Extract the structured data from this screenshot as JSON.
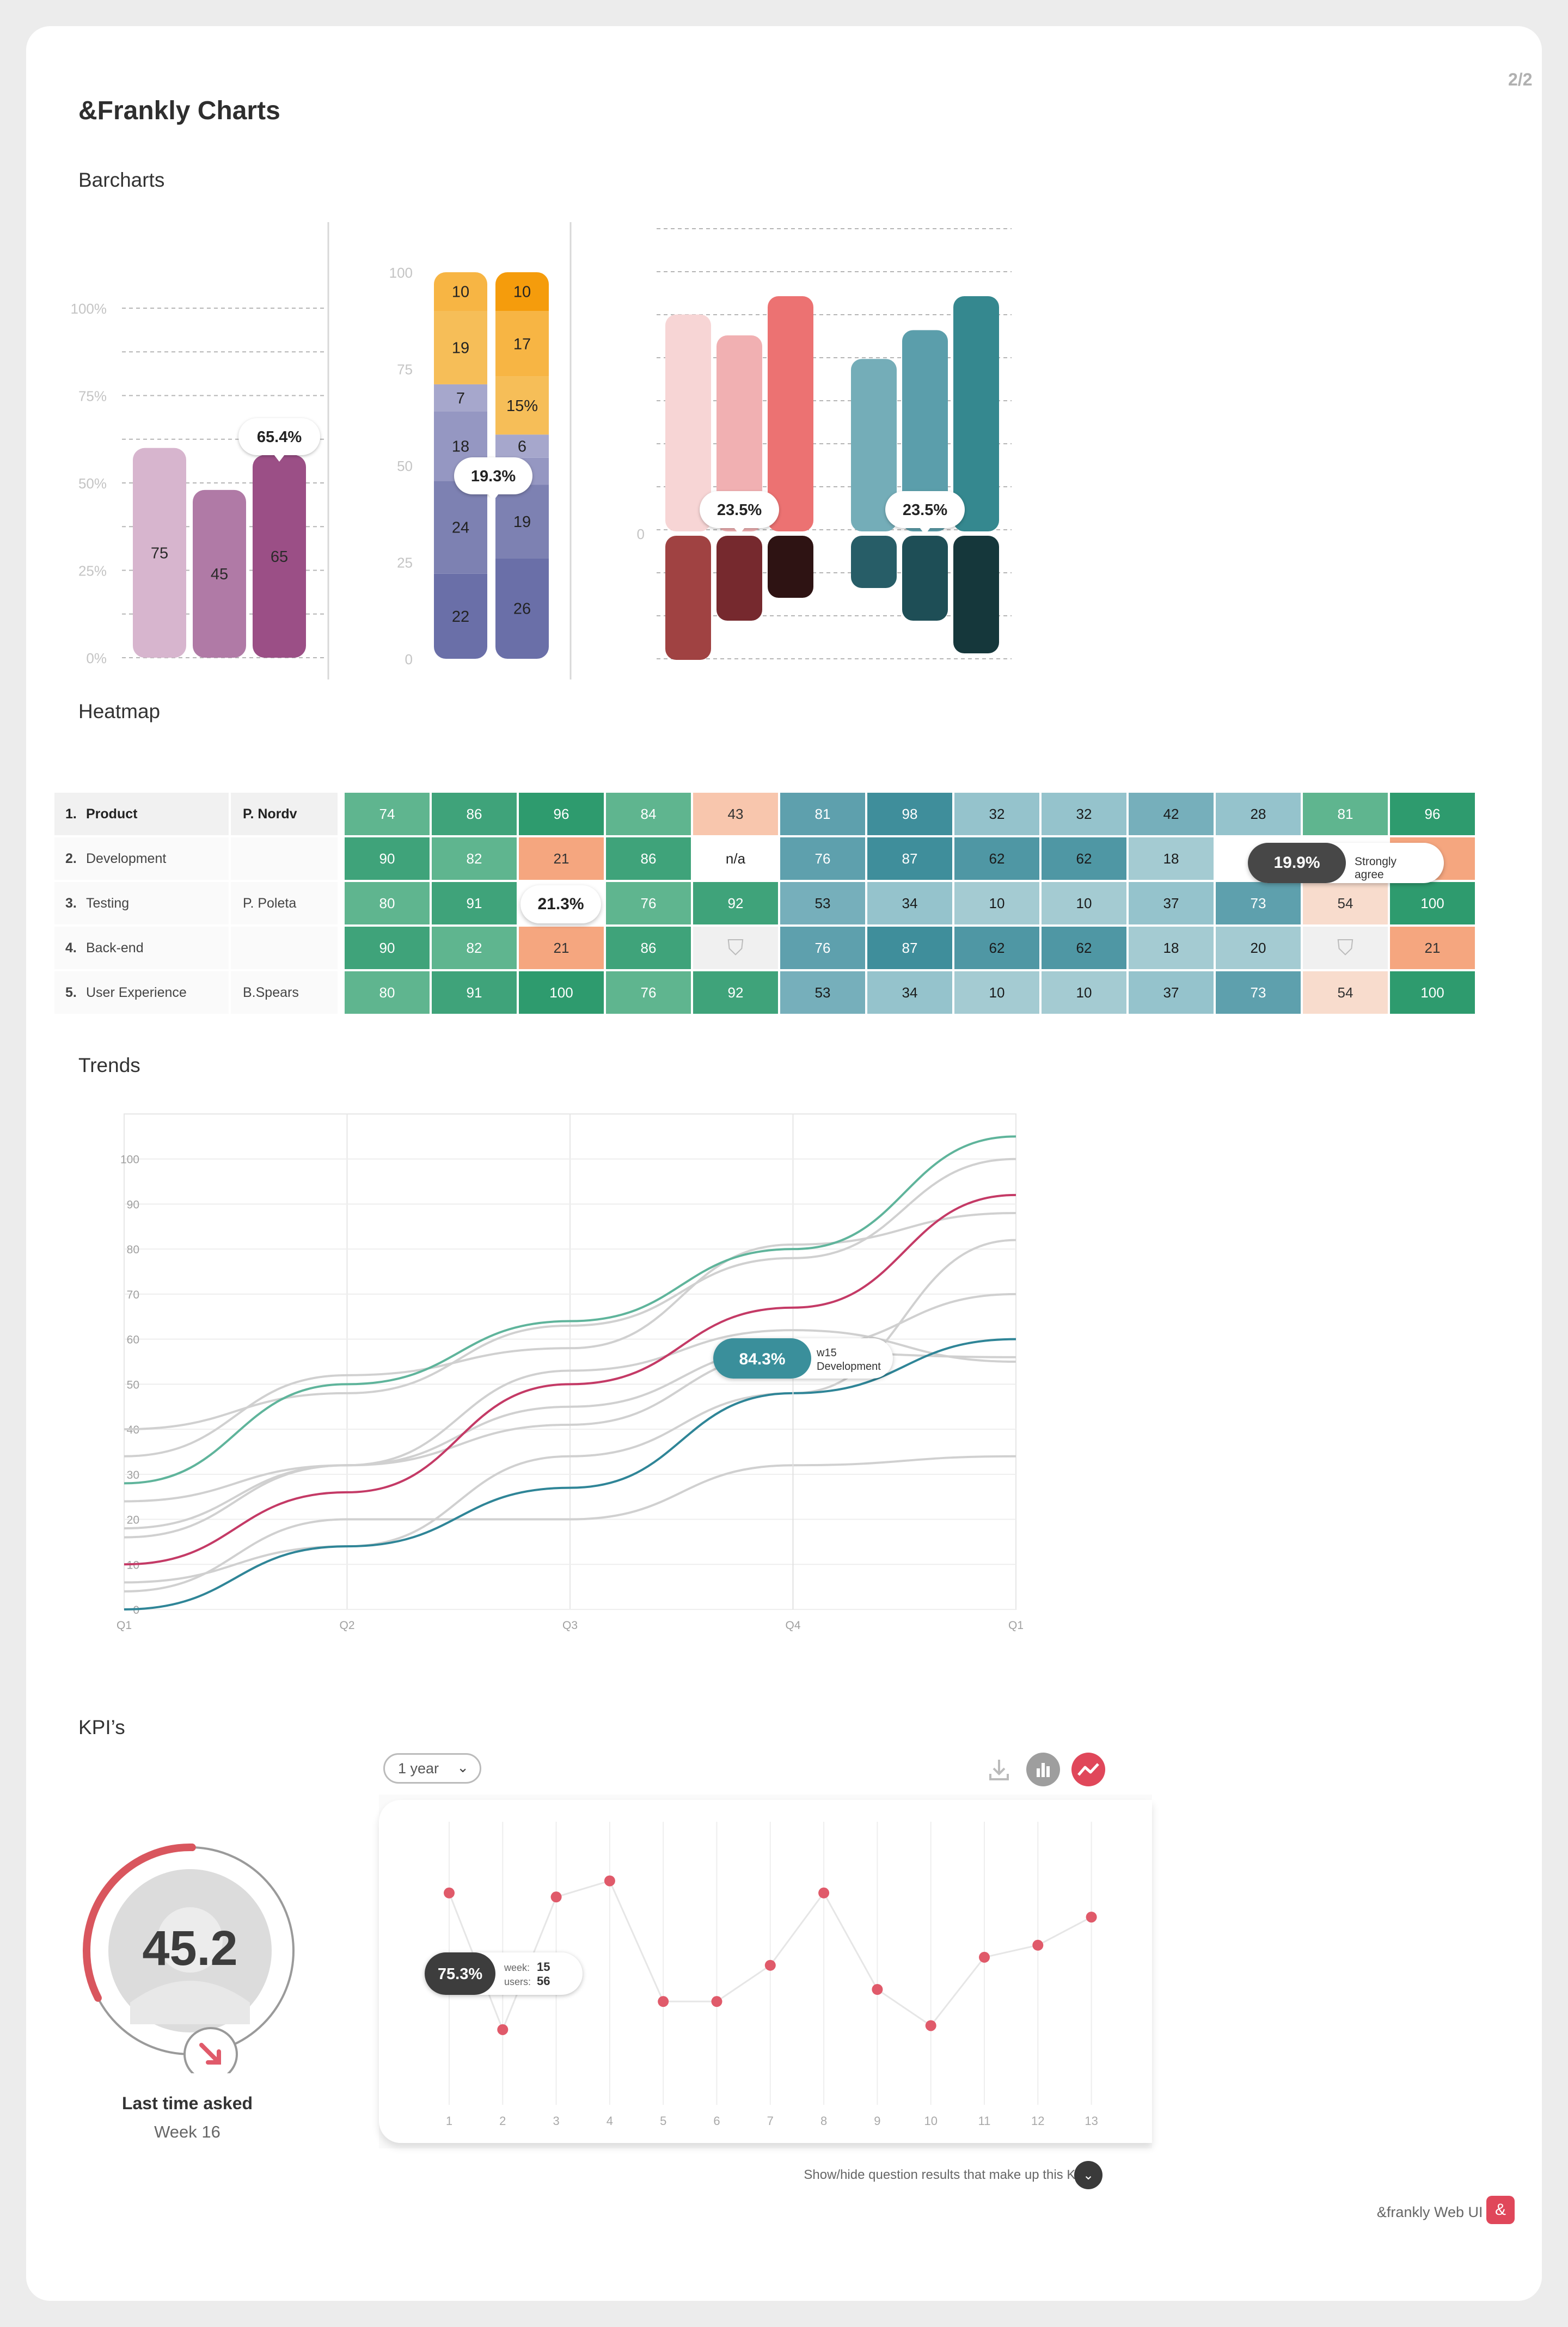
{
  "page": {
    "title": "&Frankly Charts",
    "page_number": "2/2",
    "footer": "&frankly Web UI kit",
    "footer_logo": "&"
  },
  "sections": {
    "barcharts": "Barcharts",
    "heatmap": "Heatmap",
    "trends": "Trends",
    "kpis": "KPI’s"
  },
  "colors": {
    "accent": "#e05a6a",
    "teal": "#3a8f9b",
    "green": "#2e9b6e",
    "magenta": "#c43a66",
    "purple": "#9b4f86"
  },
  "chart_data": [
    {
      "type": "bar",
      "yticks": [
        "0%",
        "25%",
        "50%",
        "75%",
        "100%"
      ],
      "ylim": [
        0,
        100
      ],
      "values": [
        75,
        45,
        65
      ],
      "bar_labels": [
        "75",
        "45",
        "65"
      ],
      "bar_heights_pct": [
        60,
        48,
        58
      ],
      "colors": [
        "#d7b5ce",
        "#b07aa6",
        "#9b4f86"
      ],
      "tooltip": "65.4%"
    },
    {
      "type": "bar",
      "stacked": true,
      "yticks": [
        "0",
        "25",
        "50",
        "75",
        "100"
      ],
      "ylim": [
        0,
        100
      ],
      "series": [
        {
          "name": "",
          "segments": [
            {
              "value": 22,
              "label": "22",
              "color": "#6a6fa8"
            },
            {
              "value": 24,
              "label": "24",
              "color": "#7d81b2"
            },
            {
              "value": 18,
              "label": "18",
              "color": "#9597c2"
            },
            {
              "value": 7,
              "label": "7",
              "color": "#a6a7cc"
            },
            {
              "value": 19,
              "label": "19",
              "color": "#f6be58"
            },
            {
              "value": 10,
              "label": "10",
              "color": "#f7b544"
            },
            {
              "value": 10,
              "label": "10",
              "color": "#f59c0c"
            }
          ]
        },
        {
          "name": "",
          "segments": [
            {
              "value": 26,
              "label": "26",
              "color": "#6a6fa8"
            },
            {
              "value": 19,
              "label": "19",
              "color": "#7d81b2"
            },
            {
              "value": 7,
              "label": "",
              "color": "#9597c2"
            },
            {
              "value": 6,
              "label": "6",
              "color": "#a6a7cc"
            },
            {
              "value": 15,
              "label": "15%",
              "color": "#f6be58"
            },
            {
              "value": 17,
              "label": "17",
              "color": "#f7b544"
            },
            {
              "value": 10,
              "label": "10",
              "color": "#f59c0c"
            }
          ]
        }
      ],
      "tooltip": "19.3%"
    },
    {
      "type": "bar",
      "diverging": true,
      "zero_label": "0",
      "groups": [
        {
          "pos": [
            83,
            75,
            90
          ],
          "neg": [
            38,
            26,
            19
          ],
          "pos_colors": [
            "#f7d5d5",
            "#f1b0b2",
            "#ec7272"
          ],
          "neg_colors": [
            "#a04242",
            "#76292e",
            "#2e1313"
          ],
          "tooltip": "23.5%"
        },
        {
          "pos": [
            66,
            77,
            90
          ],
          "neg": [
            16,
            26,
            36
          ],
          "pos_colors": [
            "#74adb8",
            "#5b9eab",
            "#35888f"
          ],
          "neg_colors": [
            "#275d67",
            "#1e4e56",
            "#15373b"
          ],
          "tooltip": "23.5%"
        }
      ]
    },
    {
      "type": "heatmap",
      "rows": [
        {
          "num": "1.",
          "label": "Product",
          "owner": "P. Nordv",
          "values": [
            "74",
            "86",
            "96",
            "84",
            "43",
            "81",
            "98",
            "32",
            "32",
            "42",
            "28",
            "81",
            "96"
          ]
        },
        {
          "num": "2.",
          "label": "Development",
          "owner": "",
          "values": [
            "90",
            "82",
            "21",
            "86",
            "n/a",
            "76",
            "87",
            "62",
            "62",
            "18",
            "",
            "",
            "21"
          ]
        },
        {
          "num": "3.",
          "label": "Testing",
          "owner": "P. Poleta",
          "values": [
            "80",
            "91",
            "",
            "76",
            "92",
            "53",
            "34",
            "10",
            "10",
            "37",
            "73",
            "54",
            "100"
          ]
        },
        {
          "num": "4.",
          "label": "Back-end",
          "owner": "",
          "values": [
            "90",
            "82",
            "21",
            "86",
            "",
            "76",
            "87",
            "62",
            "62",
            "18",
            "20",
            "",
            "21"
          ]
        },
        {
          "num": "5.",
          "label": "User Experience",
          "owner": "B.Spears",
          "values": [
            "80",
            "91",
            "100",
            "76",
            "92",
            "53",
            "34",
            "10",
            "10",
            "37",
            "73",
            "54",
            "100"
          ]
        }
      ],
      "tooltips": [
        {
          "value": "19.9%",
          "text": "Strongly agree"
        },
        {
          "value": "21.3%"
        }
      ]
    },
    {
      "type": "line",
      "x": [
        "Q1",
        "Q2",
        "Q3",
        "Q4",
        "Q1"
      ],
      "yticks": [
        0,
        10,
        20,
        30,
        40,
        50,
        60,
        70,
        80,
        90,
        100
      ],
      "ylim": [
        0,
        110
      ],
      "series": [
        {
          "name": "",
          "color": "#5fb49b",
          "values": [
            28,
            50,
            64,
            80,
            105
          ]
        },
        {
          "name": "",
          "color": "#c43a66",
          "values": [
            10,
            26,
            50,
            67,
            92
          ]
        },
        {
          "name": "",
          "color": "#2f8597",
          "values": [
            0,
            14,
            27,
            48,
            60
          ]
        },
        {
          "name": "",
          "color": "#d0d0d0",
          "values": [
            40,
            48,
            63,
            78,
            100
          ]
        },
        {
          "name": "",
          "color": "#d0d0d0",
          "values": [
            34,
            52,
            58,
            81,
            88
          ]
        },
        {
          "name": "",
          "color": "#d0d0d0",
          "values": [
            24,
            32,
            41,
            57,
            56
          ]
        },
        {
          "name": "",
          "color": "#d0d0d0",
          "values": [
            16,
            32,
            45,
            58,
            70
          ]
        },
        {
          "name": "",
          "color": "#d0d0d0",
          "values": [
            6,
            14,
            34,
            48,
            82
          ]
        },
        {
          "name": "",
          "color": "#d0d0d0",
          "values": [
            4,
            20,
            20,
            32,
            34
          ]
        },
        {
          "name": "",
          "color": "#d0d0d0",
          "values": [
            18,
            32,
            53,
            62,
            55
          ]
        }
      ],
      "tooltip": {
        "value": "84.3%",
        "week": "w15",
        "label": "Development"
      }
    },
    {
      "type": "line",
      "x": [
        "1",
        "2",
        "3",
        "4",
        "5",
        "6",
        "7",
        "8",
        "9",
        "10",
        "11",
        "12",
        "13"
      ],
      "values": [
        80,
        46,
        79,
        83,
        53,
        53,
        62,
        80,
        56,
        47,
        64,
        67,
        74
      ],
      "ylim": [
        30,
        95
      ],
      "color": "#e05a6a",
      "tooltip": {
        "value": "75.3%",
        "week_label": "week:",
        "week": "15",
        "users_label": "users:",
        "users": "56"
      }
    }
  ],
  "kpi": {
    "score": "45.2",
    "caption": "Last time asked",
    "week": "Week 16",
    "progress_pct": 45.2,
    "dropdown": "1 year",
    "toggle_text": "Show/hide question results that make up this KPI"
  }
}
